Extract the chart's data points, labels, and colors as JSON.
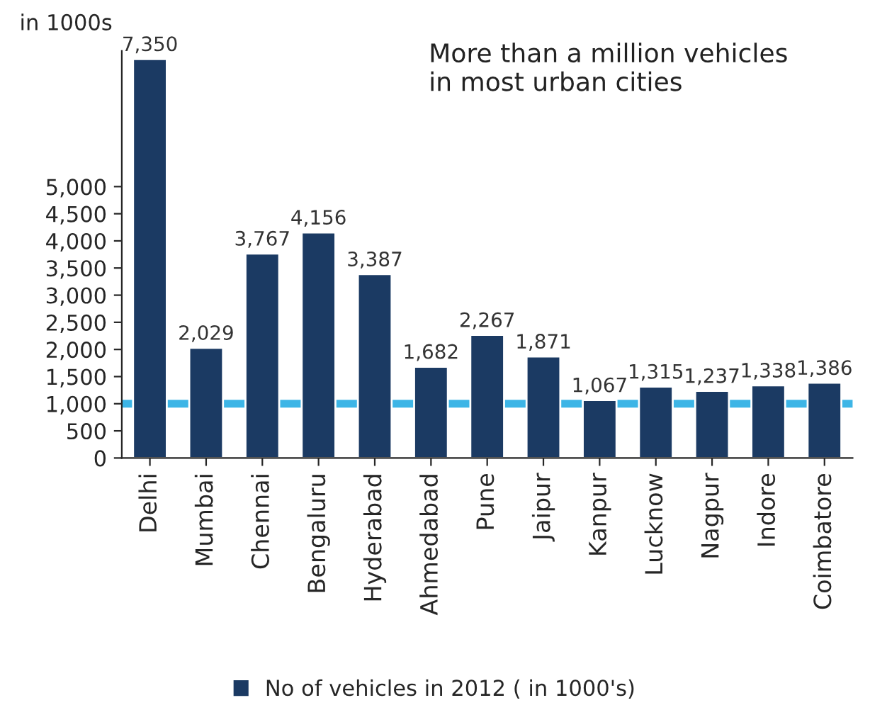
{
  "chart_data": {
    "type": "bar",
    "ylabel": "in 1000s",
    "categories": [
      "Delhi",
      "Mumbai",
      "Chennai",
      "Bengaluru",
      "Hyderabad",
      "Ahmedabad",
      "Pune",
      "Jaipur",
      "Kanpur",
      "Lucknow",
      "Nagpur",
      "Indore",
      "Coimbatore"
    ],
    "series": [
      {
        "name": "No of vehicles in 2012 ( in 1000's)",
        "color": "#1b3a63",
        "values": [
          7350,
          2029,
          3767,
          4156,
          3387,
          1682,
          2267,
          1871,
          1067,
          1315,
          1237,
          1338,
          1386
        ]
      }
    ],
    "value_labels": [
      "7,350",
      "2,029",
      "3,767",
      "4,156",
      "3,387",
      "1,682",
      "2,267",
      "1,871",
      "1,067",
      "1,315",
      "1,237",
      "1,338",
      "1,386"
    ],
    "ylim": [
      0,
      7500
    ],
    "yticks": [
      {
        "value": 0,
        "label": "0"
      },
      {
        "value": 500,
        "label": "500"
      },
      {
        "value": 1000,
        "label": "1,000"
      },
      {
        "value": 1500,
        "label": "1,500"
      },
      {
        "value": 2000,
        "label": "2,000"
      },
      {
        "value": 2500,
        "label": "2,500"
      },
      {
        "value": 3000,
        "label": "3,000"
      },
      {
        "value": 3500,
        "label": "3,500"
      },
      {
        "value": 4000,
        "label": "4,000"
      },
      {
        "value": 4500,
        "label": "4,500"
      },
      {
        "value": 5000,
        "label": "5,000"
      }
    ],
    "ref_lines": [
      {
        "axis": "y",
        "value": 1000,
        "color": "#3db5e6"
      }
    ],
    "annotations": [
      "More than a million vehicles\nin most urban cities"
    ],
    "legend": "bottom",
    "grid": false
  }
}
